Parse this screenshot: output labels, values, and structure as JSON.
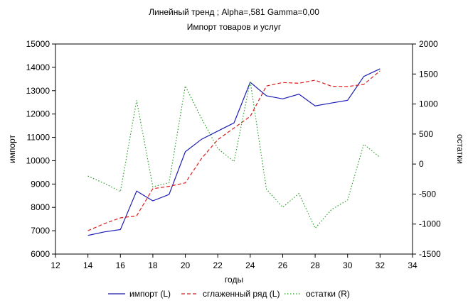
{
  "chart_data": {
    "type": "line",
    "title": "Линейный тренд ; Alpha=,581 Gamma=0,00",
    "subtitle": "Импорт товаров и услуг",
    "xlabel": "годы",
    "ylabel_left": "импорт",
    "ylabel_right": "остатки",
    "xlim": [
      12,
      34
    ],
    "ylim_left": [
      6000,
      15000
    ],
    "ylim_right": [
      -1500,
      2000
    ],
    "x_ticks": [
      12,
      14,
      16,
      18,
      20,
      22,
      24,
      26,
      28,
      30,
      32,
      34
    ],
    "y_ticks_left": [
      6000,
      7000,
      8000,
      9000,
      10000,
      11000,
      12000,
      13000,
      14000,
      15000
    ],
    "y_ticks_right": [
      -1500,
      -1000,
      -500,
      0,
      500,
      1000,
      1500,
      2000
    ],
    "grid": false,
    "legend_position": "bottom",
    "series": [
      {
        "name": "импорт (L)",
        "axis": "left",
        "color": "#1a1ab4",
        "style": "solid",
        "x": [
          14,
          15,
          16,
          17,
          18,
          19,
          20,
          21,
          22,
          23,
          24,
          25,
          26,
          27,
          28,
          29,
          30,
          31,
          32
        ],
        "values": [
          6800,
          6950,
          7050,
          8700,
          8280,
          8550,
          10380,
          10920,
          11270,
          11620,
          13360,
          12780,
          12650,
          12850,
          12350,
          12470,
          12590,
          13610,
          13940
        ]
      },
      {
        "name": "сглаженный ряд (L)",
        "axis": "left",
        "color": "#d81e1e",
        "style": "dashed",
        "x": [
          14,
          15,
          16,
          17,
          18,
          19,
          20,
          21,
          22,
          23,
          24,
          25,
          26,
          27,
          28,
          29,
          30,
          31,
          32
        ],
        "values": [
          7000,
          7300,
          7550,
          7640,
          8800,
          8900,
          9050,
          10100,
          10900,
          11400,
          11900,
          13200,
          13350,
          13320,
          13450,
          13190,
          13180,
          13270,
          13850
        ]
      },
      {
        "name": "остатки (R)",
        "axis": "right",
        "color": "#2e9e2e",
        "style": "dotted",
        "x": [
          14,
          15,
          16,
          17,
          18,
          19,
          20,
          21,
          22,
          23,
          24,
          25,
          26,
          27,
          28,
          29,
          30,
          31,
          32
        ],
        "values": [
          -200,
          -320,
          -460,
          1060,
          -380,
          -310,
          1300,
          760,
          260,
          40,
          1380,
          -420,
          -720,
          -490,
          -1070,
          -760,
          -600,
          330,
          110
        ]
      }
    ]
  }
}
